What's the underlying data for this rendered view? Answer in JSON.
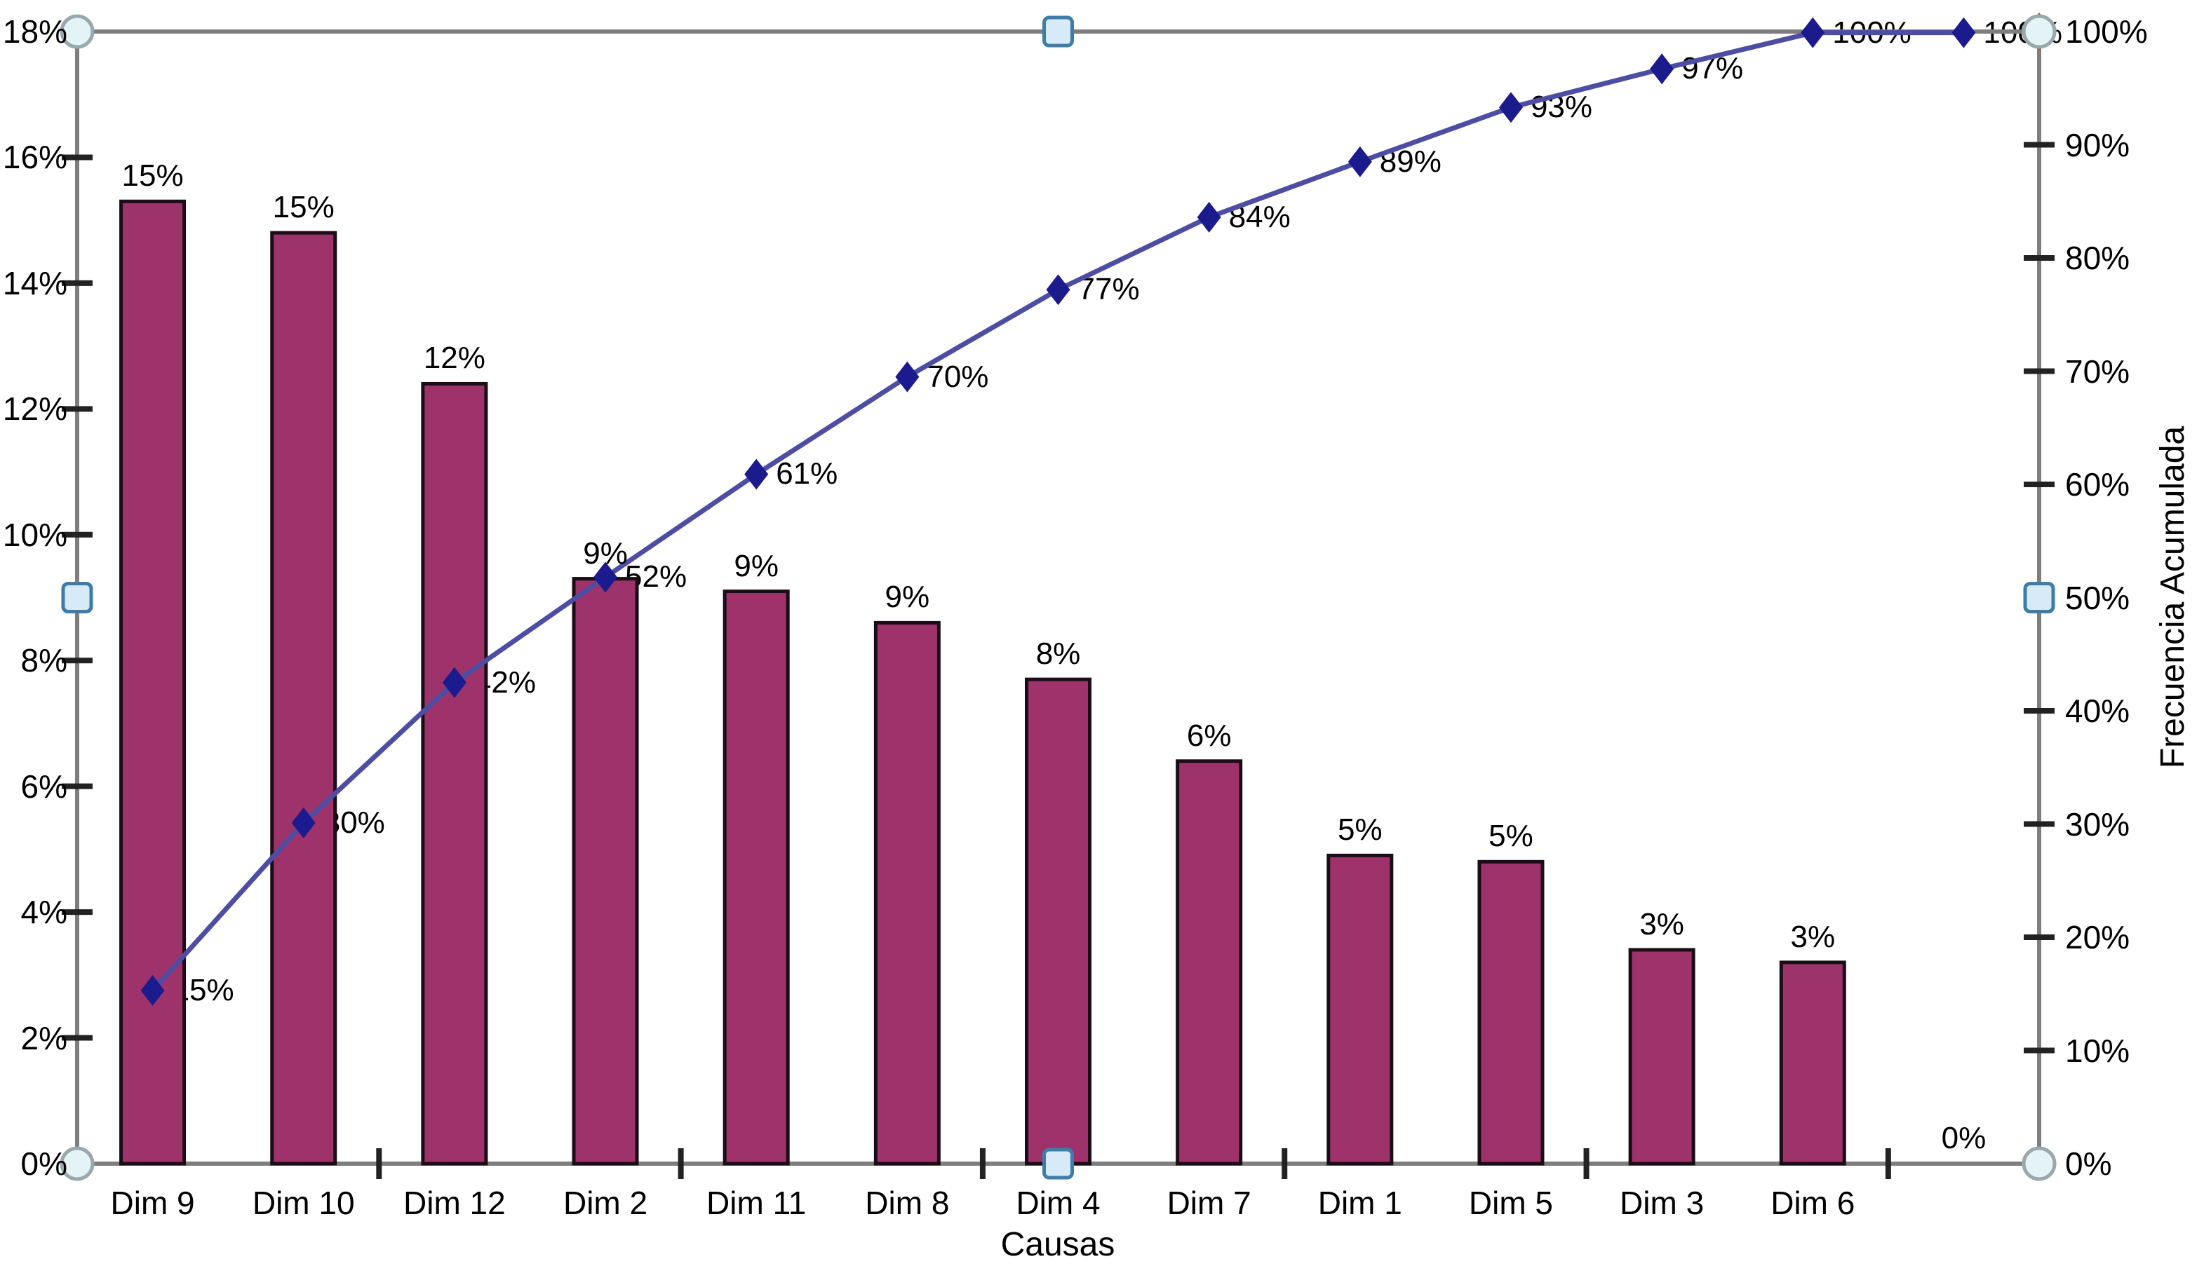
{
  "chart_data": {
    "type": "bar",
    "subtype": "pareto-combo-bar-line",
    "title": "",
    "categories": [
      "Dim 9",
      "Dim 10",
      "Dim 12",
      "Dim 2",
      "Dim 11",
      "Dim 8",
      "Dim 4",
      "Dim 7",
      "Dim 1",
      "Dim 5",
      "Dim 3",
      "Dim 6",
      ""
    ],
    "bars": {
      "name": "Frecuencia",
      "labels": [
        "15%",
        "15%",
        "12%",
        "9%",
        "9%",
        "9%",
        "8%",
        "6%",
        "5%",
        "5%",
        "3%",
        "3%",
        "0%"
      ],
      "values_pct": [
        15.3,
        14.8,
        12.4,
        9.3,
        9.1,
        8.6,
        7.7,
        6.4,
        4.9,
        4.8,
        3.4,
        3.2,
        0
      ],
      "fill": "#9E336B",
      "stroke": "#1A0D15"
    },
    "cumulative_line": {
      "name": "Frecuencia Acumulada",
      "labels": [
        "15%",
        "30%",
        "42%",
        "52%",
        "61%",
        "70%",
        "77%",
        "84%",
        "89%",
        "93%",
        "97%",
        "100%",
        "100%"
      ],
      "values_pct": [
        15.3,
        30.1,
        42.5,
        51.8,
        60.9,
        69.5,
        77.2,
        83.6,
        88.5,
        93.3,
        96.7,
        99.9,
        99.9
      ],
      "stroke": "#4D4DA3",
      "marker": "diamond",
      "marker_fill": "#1B1B8E"
    },
    "axes": {
      "left": {
        "tick_labels": [
          "18%",
          "16%",
          "14%",
          "12%",
          "10%",
          "8%",
          "6%",
          "4%",
          "2%",
          "0%"
        ],
        "min": 0,
        "max": 18
      },
      "right": {
        "title": "Frecuencia Acumulada",
        "tick_labels": [
          "100%",
          "90%",
          "80%",
          "70%",
          "60%",
          "50%",
          "40%",
          "30%",
          "20%",
          "10%",
          "0%"
        ],
        "min": 0,
        "max": 100
      },
      "x": {
        "title": "Causas"
      }
    },
    "gridlines": "none",
    "legend": "none",
    "styles": {
      "axis_color": "#7E7E7E",
      "tick_color": "#222222",
      "text_color": "#000000",
      "background": "#FFFFFF"
    },
    "selection_handles": {
      "shown": true,
      "corner_shape": "circle",
      "edge_shape": "rounded-square",
      "circle_fill": "#E4F3F6",
      "circle_stroke": "#98A8AD",
      "square_fill": "#D6EBF7",
      "square_stroke": "#3F7CA8"
    }
  }
}
